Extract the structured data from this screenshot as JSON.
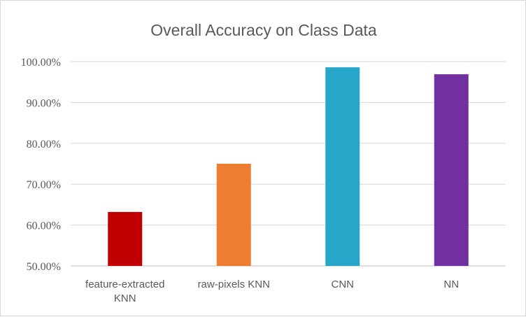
{
  "chart_data": {
    "type": "bar",
    "title": "Overall Accuracy on Class Data",
    "xlabel": "",
    "ylabel": "",
    "categories": [
      "feature-extracted KNN",
      "raw-pixels KNN",
      "CNN",
      "NN"
    ],
    "category_lines": [
      [
        "feature-extracted",
        "KNN"
      ],
      [
        "raw-pixels KNN"
      ],
      [
        "CNN"
      ],
      [
        "NN"
      ]
    ],
    "values": [
      63.2,
      75.0,
      98.6,
      96.9
    ],
    "bar_colors": [
      "#c00000",
      "#ed7d31",
      "#26a6c8",
      "#7030a0"
    ],
    "ylim": [
      50,
      100
    ],
    "yticks": [
      50,
      60,
      70,
      80,
      90,
      100
    ],
    "ytick_labels": [
      "50.00%",
      "60.00%",
      "70.00%",
      "80.00%",
      "90.00%",
      "100.00%"
    ],
    "grid": true,
    "legend": "none"
  }
}
